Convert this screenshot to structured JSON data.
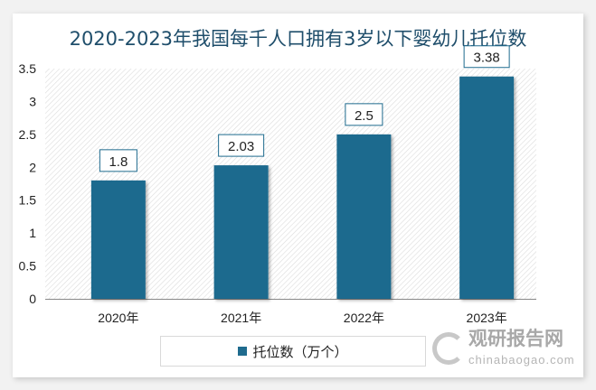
{
  "chart_data": {
    "type": "bar",
    "title": "2020-2023年我国每千人口拥有3岁以下婴幼儿托位数",
    "categories": [
      "2020年",
      "2021年",
      "2022年",
      "2023年"
    ],
    "series": [
      {
        "name": "托位数（万个）",
        "values": [
          1.8,
          2.03,
          2.5,
          3.38
        ],
        "color": "#1f6b8e"
      }
    ],
    "data_labels": [
      "1.8",
      "2.03",
      "2.5",
      "3.38"
    ],
    "yticks": [
      "0",
      "0.5",
      "1",
      "1.5",
      "2",
      "2.5",
      "3",
      "3.5"
    ],
    "ylim": [
      0,
      3.5
    ],
    "grid": false,
    "legend": "bottom"
  },
  "watermark": {
    "cn": "观研报告网",
    "en": "chinabaogao.com"
  }
}
